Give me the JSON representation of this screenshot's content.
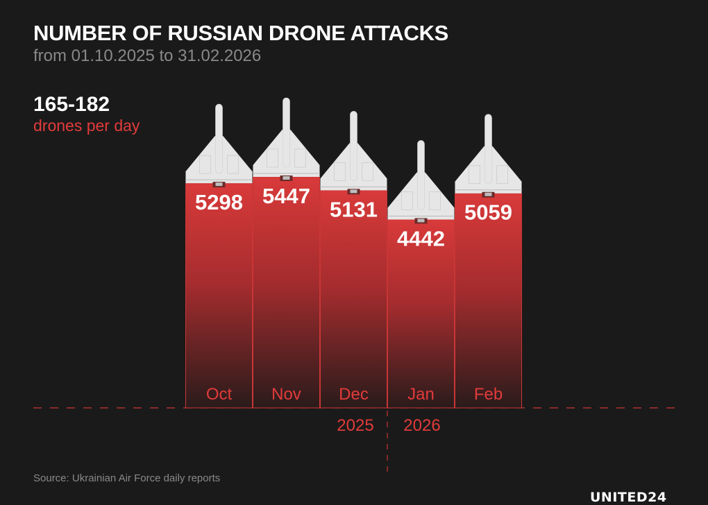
{
  "title": "NUMBER OF RUSSIAN DRONE ATTACKS",
  "subtitle": "from 01.10.2025 to 31.02.2026",
  "highlight": {
    "value": "165-182",
    "unit": "drones per day"
  },
  "source": "Source: Ukrainian Air Force daily reports",
  "logo": "UNITED24",
  "colors": {
    "background": "#1b1a1a",
    "bar_top": "#d93a3a",
    "bar_bottom": "#2a1b1b",
    "accent": "#e23b3b",
    "drone": "#e6e6e6"
  },
  "chart_data": {
    "type": "bar",
    "categories": [
      "Oct",
      "Nov",
      "Dec",
      "Jan",
      "Feb"
    ],
    "values": [
      5298,
      5447,
      5131,
      4442,
      5059
    ],
    "year_labels": [
      {
        "label": "2025",
        "months": [
          "Oct",
          "Nov",
          "Dec"
        ]
      },
      {
        "label": "2026",
        "months": [
          "Jan",
          "Feb"
        ]
      }
    ],
    "xlabel": "",
    "ylabel": "",
    "ylim": [
      0,
      5447
    ],
    "grid": false,
    "bar_decoration": "drone-icon"
  }
}
